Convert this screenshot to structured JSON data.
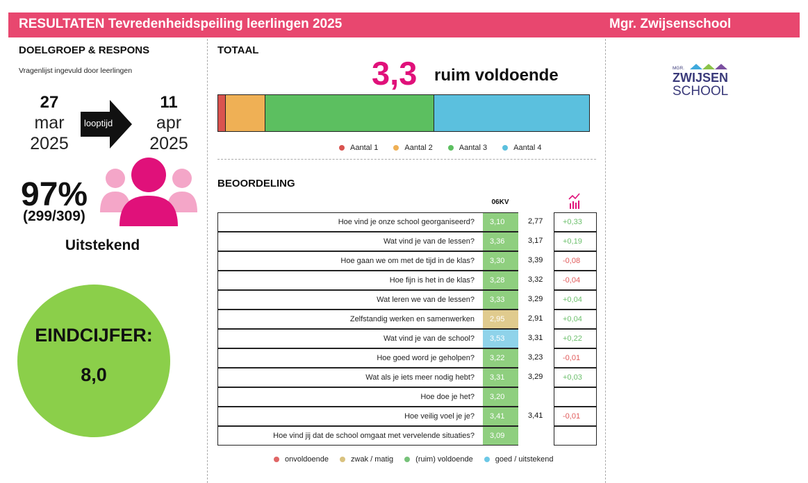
{
  "header": {
    "title": "RESULTATEN Tevredenheidspeiling leerlingen 2025",
    "school": "Mgr. Zwijsenschool"
  },
  "doelgroep": {
    "heading": "DOELGROEP & RESPONS",
    "subtext": "Vragenlijst ingevuld door leerlingen",
    "start": {
      "day": "27",
      "month": "mar",
      "year": "2025"
    },
    "end": {
      "day": "11",
      "month": "apr",
      "year": "2025"
    },
    "duration_label": "looptijd",
    "response_pct": "97%",
    "response_count": "(299/309)",
    "response_rating": "Uitstekend",
    "final_label": "EINDCIJFER:",
    "final_value": "8,0"
  },
  "totaal": {
    "heading": "TOTAAL",
    "score": "3,3",
    "label": "ruim voldoende",
    "distribution": [
      {
        "name": "Aantal 1",
        "fraction": 0.021,
        "color": "#d9534f"
      },
      {
        "name": "Aantal 2",
        "fraction": 0.107,
        "color": "#efb055"
      },
      {
        "name": "Aantal 3",
        "fraction": 0.455,
        "color": "#5cbf60"
      },
      {
        "name": "Aantal 4",
        "fraction": 0.417,
        "color": "#5bc0de"
      }
    ]
  },
  "beoordeling": {
    "heading": "BEOORDELING",
    "column_header": "06KV",
    "trend_icon": "chart-trend-icon",
    "rows": [
      {
        "q": "Hoe vind je onze school georganiseerd?",
        "score": "3,10",
        "color": "#8fcf7f",
        "cmp": "2,77",
        "diff": "+0,33",
        "pos": true
      },
      {
        "q": "Wat vind je van de lessen?",
        "score": "3,36",
        "color": "#8fcf7f",
        "cmp": "3,17",
        "diff": "+0,19",
        "pos": true
      },
      {
        "q": "Hoe gaan we om met de tijd in de klas?",
        "score": "3,30",
        "color": "#8fcf7f",
        "cmp": "3,39",
        "diff": "-0,08",
        "pos": false
      },
      {
        "q": "Hoe fijn is het in de klas?",
        "score": "3,28",
        "color": "#8fcf7f",
        "cmp": "3,32",
        "diff": "-0,04",
        "pos": false
      },
      {
        "q": "Wat leren we van de lessen?",
        "score": "3,33",
        "color": "#8fcf7f",
        "cmp": "3,29",
        "diff": "+0,04",
        "pos": true
      },
      {
        "q": "Zelfstandig werken en samenwerken",
        "score": "2,95",
        "color": "#e0cb8e",
        "cmp": "2,91",
        "diff": "+0,04",
        "pos": true
      },
      {
        "q": "Wat vind je van de school?",
        "score": "3,53",
        "color": "#8fd3ea",
        "cmp": "3,31",
        "diff": "+0,22",
        "pos": true
      },
      {
        "q": "Hoe goed word je geholpen?",
        "score": "3,22",
        "color": "#8fcf7f",
        "cmp": "3,23",
        "diff": "-0,01",
        "pos": false
      },
      {
        "q": "Wat als je iets meer nodig hebt?",
        "score": "3,31",
        "color": "#8fcf7f",
        "cmp": "3,29",
        "diff": "+0,03",
        "pos": true
      },
      {
        "q": "Hoe doe je het?",
        "score": "3,20",
        "color": "#8fcf7f",
        "cmp": "",
        "diff": "",
        "pos": true
      },
      {
        "q": "Hoe veilig voel je je?",
        "score": "3,41",
        "color": "#8fcf7f",
        "cmp": "3,41",
        "diff": "-0,01",
        "pos": false
      },
      {
        "q": "Hoe vind jij dat de school omgaat met vervelende situaties?",
        "score": "3,09",
        "color": "#8fcf7f",
        "cmp": "",
        "diff": "",
        "pos": true
      }
    ],
    "legend": [
      {
        "name": "onvoldoende",
        "color": "#e06666"
      },
      {
        "name": "zwak / matig",
        "color": "#d9c27f"
      },
      {
        "name": "(ruim) voldoende",
        "color": "#77c27a"
      },
      {
        "name": "goed / uitstekend",
        "color": "#6cc8e6"
      }
    ]
  },
  "logo": {
    "small": "MGR.",
    "line1": "ZWIJSEN",
    "line2": "SCHOOL"
  },
  "colors": {
    "brand_pink": "#e8476f",
    "score_pink": "#e0117a",
    "positive": "#6cbf6c",
    "negative": "#e05a5a"
  }
}
